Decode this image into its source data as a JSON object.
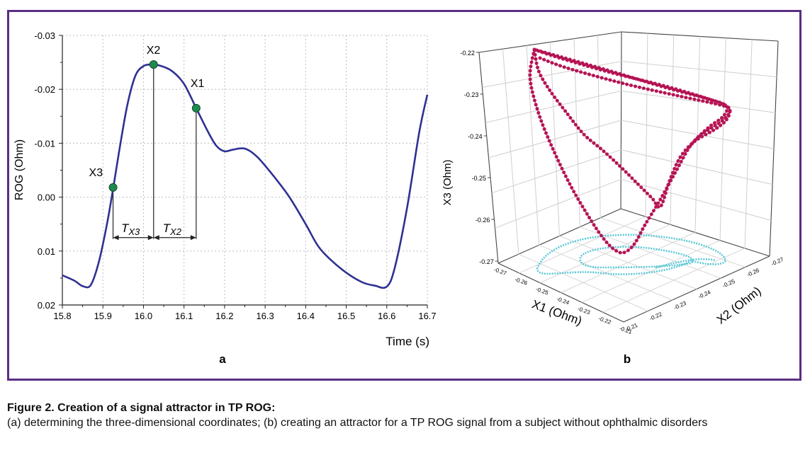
{
  "caption": {
    "title": "Figure 2. Creation of a signal attractor in TP ROG:",
    "body": "(a) determining the three-dimensional coordinates; (b) creating an attractor for a TP ROG signal from a subject without ophthalmic disorders"
  },
  "chart_data": [
    {
      "type": "line",
      "panel_label": "a",
      "xlabel": "Time (s)",
      "ylabel": "ROG (Ohm)",
      "xlim": [
        15.8,
        16.7
      ],
      "ylim": [
        0.02,
        -0.03
      ],
      "y_axis_inverted": true,
      "grid": true,
      "x_ticks": [
        "15.8",
        "15.9",
        "16.0",
        "16.1",
        "16.2",
        "16.3",
        "16.4",
        "16.5",
        "16.6",
        "16.7"
      ],
      "y_ticks": [
        {
          "value": -0.03,
          "label": "-0.03"
        },
        {
          "value": -0.02,
          "label": "-0.02"
        },
        {
          "value": -0.01,
          "label": "-0.01"
        },
        {
          "value": 0.0,
          "label": "0.00"
        },
        {
          "value": 0.01,
          "label": "0.01"
        },
        {
          "value": 0.02,
          "label": "0.02"
        }
      ],
      "line_color": "#2e3192",
      "marker_color": "#1e8a4e",
      "series": [
        {
          "x": [
            15.8,
            15.83,
            15.85,
            15.87,
            15.89,
            15.91,
            15.925,
            15.94,
            15.96,
            15.98,
            16.0,
            16.02,
            16.04,
            16.07,
            16.1,
            16.13,
            16.16,
            16.18,
            16.2,
            16.22,
            16.25,
            16.28,
            16.32,
            16.36,
            16.4,
            16.43,
            16.46,
            16.5,
            16.54,
            16.57,
            16.6,
            16.62,
            16.65,
            16.68,
            16.7
          ],
          "y": [
            0.0145,
            0.0155,
            0.0165,
            0.0163,
            0.012,
            0.005,
            -0.0015,
            -0.0085,
            -0.017,
            -0.0225,
            -0.0243,
            -0.0246,
            -0.0244,
            -0.0234,
            -0.021,
            -0.0165,
            -0.012,
            -0.0095,
            -0.0085,
            -0.0088,
            -0.009,
            -0.0075,
            -0.004,
            0.0,
            0.005,
            0.009,
            0.0115,
            0.014,
            0.0158,
            0.0164,
            0.0166,
            0.013,
            0.002,
            -0.012,
            -0.019
          ]
        }
      ],
      "points": [
        {
          "label": "X3",
          "x": 15.925,
          "y": -0.0018
        },
        {
          "label": "X2",
          "x": 16.025,
          "y": -0.0246
        },
        {
          "label": "X1",
          "x": 16.13,
          "y": -0.0165
        }
      ],
      "intervals": [
        {
          "label_main": "T",
          "label_sub": "X3",
          "from": 15.925,
          "to": 16.025
        },
        {
          "label_main": "T",
          "label_sub": "X2",
          "from": 16.025,
          "to": 16.13
        }
      ]
    },
    {
      "type": "scatter",
      "subtype": "3d-attractor",
      "panel_label": "b",
      "xlabel": "X1 (Ohm)",
      "ylabel": "X2 (Ohm)",
      "zlabel": "X3 (Ohm)",
      "xlim": [
        -0.27,
        -0.21
      ],
      "ylim": [
        -0.27,
        -0.21
      ],
      "zlim": [
        -0.27,
        -0.22
      ],
      "x_ticks": [
        "-0.27",
        "-0.26",
        "-0.25",
        "-0.24",
        "-0.23",
        "-0.22",
        "-0.21"
      ],
      "y_ticks": [
        "-0.27",
        "-0.26",
        "-0.25",
        "-0.24",
        "-0.23",
        "-0.22",
        "-0.21"
      ],
      "z_ticks": [
        "-0.22",
        "-0.23",
        "-0.24",
        "-0.25",
        "-0.26",
        "-0.27"
      ],
      "grid": true,
      "attractor_color": "#c2185b",
      "projection_color": "#5bc8d6"
    }
  ]
}
